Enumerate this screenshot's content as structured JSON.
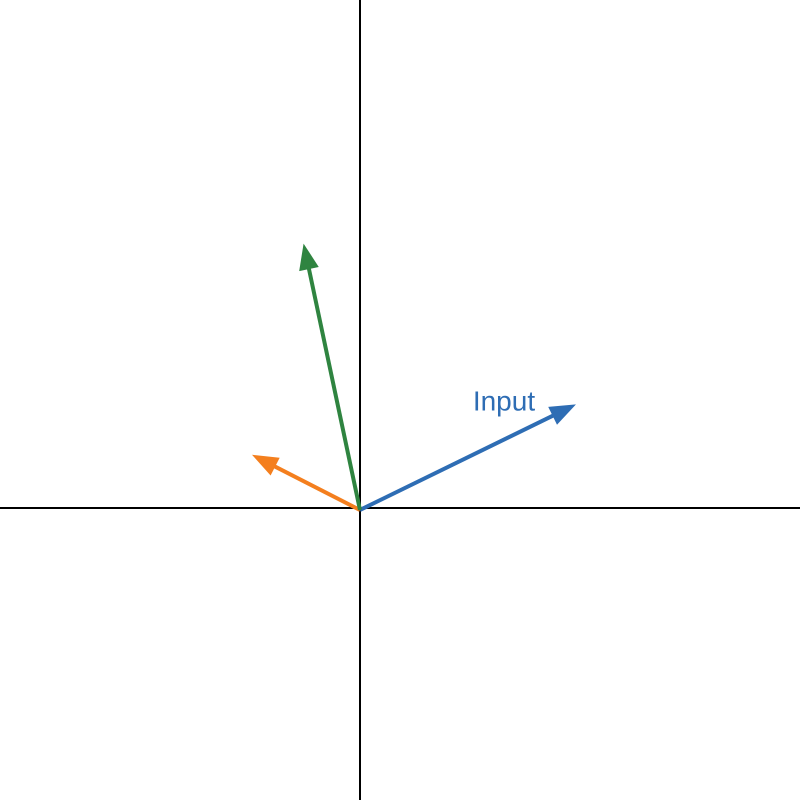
{
  "diagram": {
    "type": "vector-plot",
    "axes": {
      "x_range": [
        -3,
        3.667
      ],
      "y_range": [
        -2.417,
        4.25
      ],
      "origin": [
        0,
        0
      ],
      "color": "#000000"
    },
    "vectors": [
      {
        "id": "input",
        "label": "Input",
        "x": 1.8,
        "y": 0.88,
        "color": "#2e6db4"
      },
      {
        "id": "orange",
        "label": "",
        "x": -0.9,
        "y": 0.46,
        "color": "#f47f1e"
      },
      {
        "id": "green",
        "label": "",
        "x": -0.47,
        "y": 2.22,
        "color": "#2f8440"
      }
    ]
  }
}
